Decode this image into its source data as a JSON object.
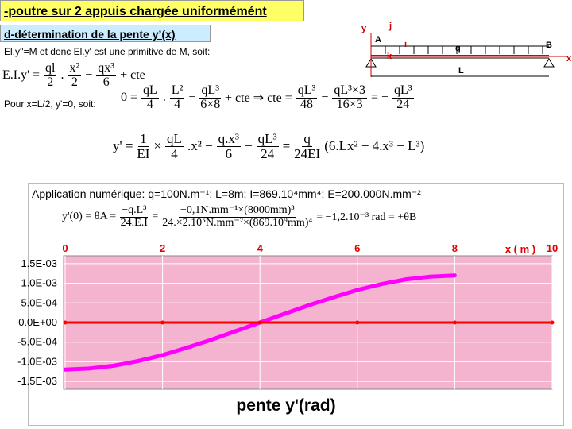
{
  "header": {
    "title": "-poutre sur 2 appuis chargée uniformémént",
    "subtitle": "d-détermination de la pente y’(x)"
  },
  "diagram": {
    "labels": [
      "y",
      "A",
      "j",
      "i",
      "k",
      "q",
      "B",
      "x",
      "L"
    ]
  },
  "text1": "El.y''=M et donc El.y' est une primitive de M, soit:",
  "formula1": [
    "E.I.y' =",
    {
      "num": "ql",
      "den": "2"
    },
    ".",
    {
      "num": "x²",
      "den": "2"
    },
    "−",
    {
      "num": "qx³",
      "den": "6"
    },
    "+ cte"
  ],
  "text2": "Pour x=L/2, y'=0, soit:",
  "formula2": [
    "0 =",
    {
      "num": "qL",
      "den": "4"
    },
    ".",
    {
      "num": "L²",
      "den": "4"
    },
    "−",
    {
      "num": "qL³",
      "den": "6×8"
    },
    "+ cte ⇒ cte =",
    {
      "num": "qL³",
      "den": "48"
    },
    "−",
    {
      "num": "qL³×3",
      "den": "16×3"
    },
    "= −",
    {
      "num": "qL³",
      "den": "24"
    }
  ],
  "formula3": [
    "y' =",
    {
      "num": "1",
      "den": "EI"
    },
    "×",
    {
      "num": "qL",
      "den": "4"
    },
    ".x² −",
    {
      "num": "q.x³",
      "den": "6"
    },
    "−",
    {
      "num": "qL³",
      "den": "24"
    },
    "=",
    {
      "num": "q",
      "den": "24EI"
    },
    "(6.Lx² − 4.x³ − L³)"
  ],
  "application": "Application numérique: q=100N.m⁻¹; L=8m; I=869.10⁴mm⁴; E=200.000N.mm⁻²",
  "formula4": [
    "y'(0) = θA =",
    {
      "num": "−q.L³",
      "den": "24.E.I"
    },
    "=",
    {
      "num": "−0,1N.mm⁻¹×(8000mm)³",
      "den": "24.×2.10⁵N.mm⁻²×(869.10⁹mm)⁴"
    },
    "= −1,2.10⁻³ rad = +θB"
  ],
  "chart_data": {
    "type": "line",
    "title": "pente y'(rad)",
    "x_label": "x ( m )",
    "x": [
      0,
      0.5,
      1,
      1.5,
      2,
      2.5,
      3,
      3.5,
      4,
      4.5,
      5,
      5.5,
      6,
      6.5,
      7,
      7.5,
      8
    ],
    "series": [
      {
        "color": "#ff00ff",
        "values": [
          -0.0012,
          -0.00117,
          -0.0011,
          -0.00098,
          -0.00083,
          -0.00064,
          -0.00044,
          -0.00022,
          0,
          0.00022,
          0.00044,
          0.00064,
          0.00083,
          0.00098,
          0.0011,
          0.00117,
          0.0012
        ]
      },
      {
        "color": "#ff0000",
        "x": [
          0,
          2,
          4,
          6,
          8,
          10
        ],
        "values": [
          0,
          0,
          0,
          0,
          0,
          0
        ]
      }
    ],
    "xlim": [
      0,
      10
    ],
    "xticks": [
      0,
      2,
      4,
      6,
      8,
      10
    ],
    "ylim": [
      -0.0017,
      0.0017
    ],
    "yticks": [
      {
        "value": 0.0015,
        "label": "1.5E-03"
      },
      {
        "value": 0.001,
        "label": "1.0E-03"
      },
      {
        "value": 0.0005,
        "label": "5.0E-04"
      },
      {
        "value": 0,
        "label": "0.0E+00"
      },
      {
        "value": -0.0005,
        "label": "-5.0E-04"
      },
      {
        "value": -0.001,
        "label": "-1.0E-03"
      },
      {
        "value": -0.0015,
        "label": "-1.5E-03"
      }
    ],
    "grid": true,
    "background": "#f4b3cf"
  }
}
